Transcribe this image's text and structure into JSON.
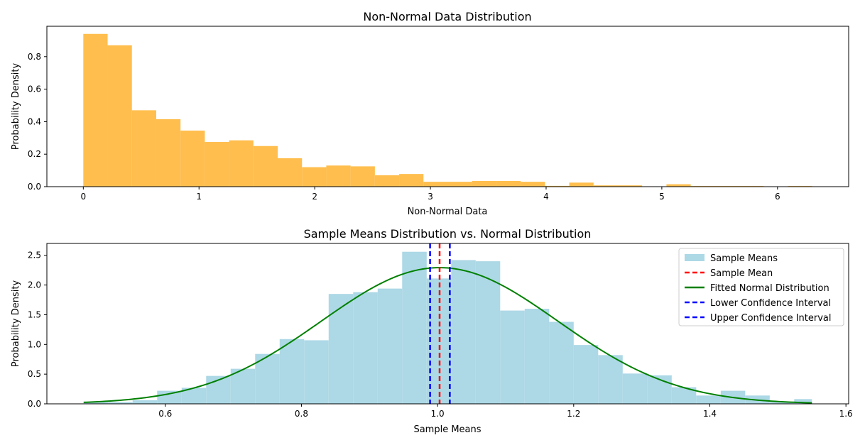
{
  "chart_data": [
    {
      "type": "bar",
      "title": "Non-Normal Data Distribution",
      "xlabel": "Non-Normal Data",
      "ylabel": "Probability Density",
      "xlim": [
        -0.315,
        6.615
      ],
      "ylim": [
        0,
        0.987
      ],
      "xticks": [
        0,
        1,
        2,
        3,
        4,
        5,
        6
      ],
      "yticks": [
        0.0,
        0.2,
        0.4,
        0.6,
        0.8
      ],
      "ytick_format": 1,
      "grid": false,
      "bar_color": "#ffbe4d",
      "bin_edges": [
        0.0,
        0.21,
        0.42,
        0.63,
        0.84,
        1.05,
        1.26,
        1.47,
        1.68,
        1.89,
        2.1,
        2.31,
        2.52,
        2.73,
        2.94,
        3.15,
        3.36,
        3.57,
        3.78,
        3.99,
        4.2,
        4.41,
        4.62,
        4.83,
        5.04,
        5.25,
        5.46,
        5.67,
        5.88,
        6.09,
        6.3
      ],
      "values": [
        0.94,
        0.87,
        0.47,
        0.415,
        0.345,
        0.275,
        0.285,
        0.25,
        0.175,
        0.12,
        0.13,
        0.125,
        0.07,
        0.078,
        0.03,
        0.03,
        0.035,
        0.035,
        0.03,
        0.005,
        0.025,
        0.008,
        0.008,
        0.0,
        0.015,
        0.004,
        0.004,
        0.004,
        0.0,
        0.004
      ]
    },
    {
      "type": "bar",
      "title": "Sample Means Distribution vs. Normal Distribution",
      "xlabel": "Sample Means",
      "ylabel": "Probability Density",
      "xlim": [
        0.426,
        1.604
      ],
      "ylim": [
        0,
        2.7
      ],
      "xticks": [
        0.6,
        0.8,
        1.0,
        1.2,
        1.4,
        1.6
      ],
      "yticks": [
        0.0,
        0.5,
        1.0,
        1.5,
        2.0,
        2.5
      ],
      "xtick_format": 1,
      "ytick_format": 1,
      "grid": false,
      "legend": "top-right",
      "bar_color": "#add8e6",
      "hist_series_name": "Sample Means",
      "bin_edges": [
        0.48,
        0.516,
        0.552,
        0.588,
        0.624,
        0.66,
        0.696,
        0.732,
        0.768,
        0.804,
        0.84,
        0.876,
        0.912,
        0.948,
        0.984,
        1.02,
        1.056,
        1.092,
        1.128,
        1.164,
        1.2,
        1.236,
        1.272,
        1.308,
        1.344,
        1.38,
        1.416,
        1.452,
        1.488,
        1.524,
        1.55
      ],
      "values": [
        0.03,
        0.03,
        0.06,
        0.22,
        0.27,
        0.47,
        0.59,
        0.84,
        1.09,
        1.07,
        1.85,
        1.88,
        1.94,
        2.56,
        2.11,
        2.42,
        2.4,
        1.57,
        1.6,
        1.38,
        0.99,
        0.82,
        0.51,
        0.48,
        0.28,
        0.14,
        0.22,
        0.14,
        0.03,
        0.08
      ],
      "normal_fit": {
        "name": "Fitted Normal Distribution",
        "mean": 1.003,
        "std": 0.174,
        "x_range": [
          0.48,
          1.55
        ],
        "color": "#008000"
      },
      "vlines": [
        {
          "name": "Sample Mean",
          "x": 1.003,
          "color": "#ff0000"
        },
        {
          "name": "Lower Confidence Interval",
          "x": 0.989,
          "color": "#0000ff"
        },
        {
          "name": "Upper Confidence Interval",
          "x": 1.018,
          "color": "#0000ff"
        }
      ]
    }
  ]
}
